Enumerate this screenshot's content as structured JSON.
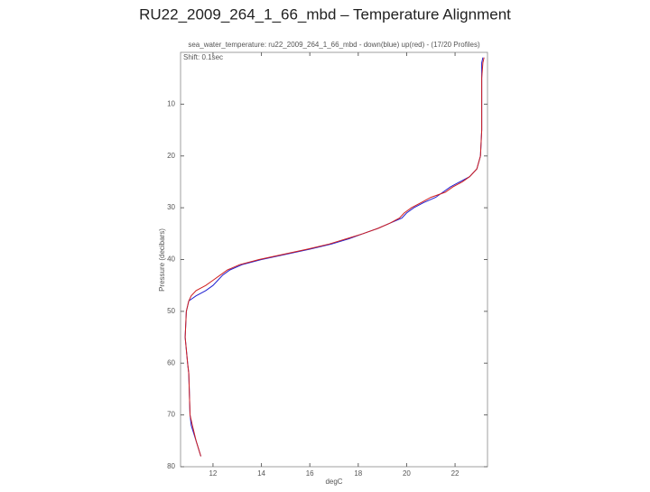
{
  "title": "RU22_2009_264_1_66_mbd – Temperature Alignment",
  "chart_data": {
    "type": "line",
    "title": "sea_water_temperature: ru22_2009_264_1_66_mbd - down(blue) up(red) - (17/20 Profiles)",
    "annotation": "Shift: 0.1sec",
    "x_label": "degC",
    "y_label": "Pressure (decibars)",
    "xlim": [
      10.66,
      23.34
    ],
    "xticks": [
      12,
      14,
      16,
      18,
      20,
      22
    ],
    "ylim": [
      0,
      80
    ],
    "yticks": [
      10,
      20,
      30,
      40,
      50,
      60,
      70,
      80
    ],
    "y_inverted": true,
    "series": [
      {
        "color": "#1f1fd0",
        "x": [
          23.15,
          23.1,
          23.1,
          23.1,
          23.05,
          22.9,
          22.6,
          22.2,
          21.8,
          21.5,
          21.2,
          20.7,
          20.3,
          20.0,
          19.8,
          19.3,
          18.8,
          18.2,
          17.6,
          16.9,
          16.0,
          15.0,
          14.0,
          13.2,
          12.7,
          12.4,
          12.2,
          12.0,
          11.7,
          11.3,
          11.0,
          10.9,
          10.85,
          10.95,
          11.0,
          11.05,
          11.1,
          11.3,
          11.5
        ],
        "values": [
          1,
          2,
          5,
          15,
          20,
          22.5,
          24,
          25,
          26,
          27,
          28,
          29,
          30,
          31,
          32,
          33,
          34,
          35,
          36,
          37,
          38,
          39,
          40,
          41,
          42,
          43,
          44,
          45,
          46,
          47,
          48,
          50,
          55,
          60,
          62,
          70,
          72,
          75,
          78
        ]
      },
      {
        "color": "#d01f1f",
        "x": [
          23.2,
          23.15,
          23.1,
          23.1,
          23.05,
          22.9,
          22.6,
          22.3,
          21.9,
          21.6,
          21.0,
          20.6,
          20.2,
          19.9,
          19.7,
          19.3,
          18.8,
          18.2,
          17.5,
          16.8,
          15.9,
          14.9,
          13.9,
          13.1,
          12.6,
          12.3,
          12.0,
          11.7,
          11.3,
          11.1,
          11.0,
          10.9,
          10.85,
          10.95,
          11.0,
          11.05,
          11.15,
          11.3,
          11.5
        ],
        "values": [
          1,
          2,
          5,
          15,
          20,
          22.5,
          24,
          25,
          26,
          27,
          28,
          29,
          30,
          31,
          32,
          33,
          34,
          35,
          36,
          37,
          38,
          39,
          40,
          41,
          42,
          43,
          44,
          45,
          46,
          47,
          48,
          50,
          55,
          60,
          62,
          70,
          72,
          75,
          78
        ]
      }
    ]
  }
}
